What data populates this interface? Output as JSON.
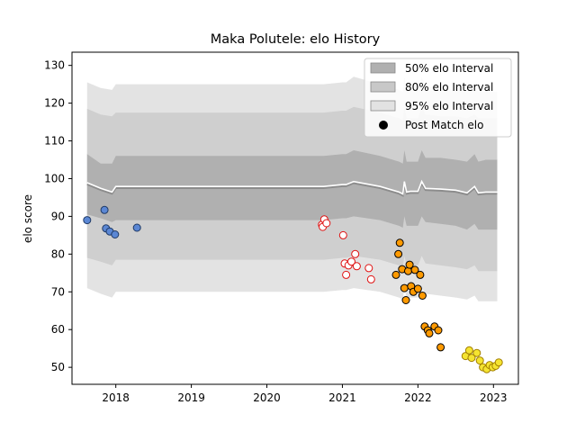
{
  "chart_data": {
    "type": "scatter",
    "title": "Maka Polutele: elo History",
    "xlabel": "",
    "ylabel": "elo score",
    "xlim": [
      2017.42,
      2023.33
    ],
    "ylim": [
      45.5,
      133.5
    ],
    "x_ticks": [
      2018,
      2019,
      2020,
      2021,
      2022,
      2023
    ],
    "y_ticks": [
      50,
      60,
      70,
      80,
      90,
      100,
      110,
      120,
      130
    ],
    "grid": false,
    "legend_position": "top-right",
    "legend": [
      {
        "label": "50% elo Interval",
        "kind": "band",
        "color": "#b0b0b0"
      },
      {
        "label": "80% elo Interval",
        "kind": "band",
        "color": "#c8c8c8"
      },
      {
        "label": "95% elo Interval",
        "kind": "band",
        "color": "#e2e2e2"
      },
      {
        "label": "Post Match elo",
        "kind": "marker",
        "color": "#000000"
      }
    ],
    "colors": {
      "band50": "#b0b0b0",
      "band80": "#cfcfcf",
      "band95": "#e3e3e3",
      "median_line": "#8c8c8c",
      "median_highlight": "#ffffff"
    },
    "intervals": {
      "x": [
        2017.62,
        2017.8,
        2017.95,
        2018.0,
        2018.5,
        2019.0,
        2020.0,
        2020.75,
        2021.0,
        2021.05,
        2021.15,
        2021.5,
        2021.75,
        2021.8,
        2021.82,
        2021.85,
        2021.9,
        2022.0,
        2022.05,
        2022.1,
        2022.3,
        2022.5,
        2022.65,
        2022.75,
        2022.8,
        2022.9,
        2023.05
      ],
      "median": [
        98.5,
        97.0,
        96.0,
        97.5,
        97.5,
        97.5,
        97.5,
        97.5,
        98.0,
        98.0,
        98.8,
        97.5,
        96.0,
        95.5,
        98.8,
        96.0,
        96.2,
        96.2,
        98.8,
        97.0,
        96.8,
        96.5,
        95.8,
        97.5,
        95.8,
        96.0,
        96.0
      ],
      "band50": [
        [
          90.5,
          106.5
        ],
        [
          89.5,
          104.0
        ],
        [
          88.5,
          104.0
        ],
        [
          89.0,
          106.0
        ],
        [
          89.0,
          106.0
        ],
        [
          89.0,
          106.0
        ],
        [
          89.0,
          106.0
        ],
        [
          89.0,
          106.0
        ],
        [
          89.5,
          106.5
        ],
        [
          89.5,
          106.5
        ],
        [
          90.0,
          107.5
        ],
        [
          89.0,
          106.0
        ],
        [
          87.5,
          104.5
        ],
        [
          87.0,
          104.0
        ],
        [
          90.0,
          107.5
        ],
        [
          87.5,
          104.5
        ],
        [
          87.5,
          104.5
        ],
        [
          87.5,
          104.5
        ],
        [
          90.0,
          107.5
        ],
        [
          88.5,
          105.5
        ],
        [
          88.0,
          105.5
        ],
        [
          87.5,
          105.0
        ],
        [
          86.5,
          104.5
        ],
        [
          88.0,
          106.5
        ],
        [
          86.5,
          104.5
        ],
        [
          86.5,
          105.0
        ],
        [
          86.5,
          105.0
        ]
      ],
      "band80": [
        [
          79.0,
          118.5
        ],
        [
          78.0,
          117.0
        ],
        [
          77.0,
          116.5
        ],
        [
          78.5,
          117.5
        ],
        [
          78.5,
          117.5
        ],
        [
          78.5,
          117.5
        ],
        [
          78.5,
          117.5
        ],
        [
          78.5,
          117.5
        ],
        [
          79.0,
          118.0
        ],
        [
          79.0,
          118.0
        ],
        [
          79.5,
          119.0
        ],
        [
          78.5,
          117.5
        ],
        [
          77.0,
          116.0
        ],
        [
          76.5,
          115.5
        ],
        [
          79.5,
          119.0
        ],
        [
          77.0,
          116.0
        ],
        [
          77.0,
          116.0
        ],
        [
          77.0,
          116.0
        ],
        [
          79.5,
          119.0
        ],
        [
          77.5,
          117.0
        ],
        [
          77.0,
          116.5
        ],
        [
          76.5,
          116.5
        ],
        [
          76.0,
          116.0
        ],
        [
          77.0,
          117.0
        ],
        [
          75.5,
          116.0
        ],
        [
          75.5,
          116.0
        ],
        [
          75.5,
          116.0
        ]
      ],
      "band95": [
        [
          71.0,
          125.5
        ],
        [
          69.5,
          124.0
        ],
        [
          68.5,
          123.5
        ],
        [
          70.0,
          125.0
        ],
        [
          70.0,
          125.0
        ],
        [
          70.0,
          125.0
        ],
        [
          70.0,
          125.0
        ],
        [
          70.0,
          125.0
        ],
        [
          70.5,
          125.5
        ],
        [
          70.5,
          125.5
        ],
        [
          71.0,
          127.0
        ],
        [
          70.0,
          125.0
        ],
        [
          68.5,
          123.5
        ],
        [
          68.0,
          123.0
        ],
        [
          71.0,
          127.0
        ],
        [
          68.5,
          123.5
        ],
        [
          68.5,
          123.5
        ],
        [
          68.5,
          123.5
        ],
        [
          71.0,
          127.0
        ],
        [
          69.5,
          124.5
        ],
        [
          69.0,
          124.0
        ],
        [
          68.5,
          123.5
        ],
        [
          68.0,
          123.0
        ],
        [
          69.0,
          124.5
        ],
        [
          67.5,
          123.0
        ],
        [
          67.5,
          123.0
        ],
        [
          67.5,
          123.0
        ]
      ]
    },
    "series": [
      {
        "fill": "#5b87d4",
        "edge": "#1f3a66",
        "x": [
          2017.62,
          2017.85,
          2017.87,
          2017.92,
          2017.99,
          2018.28
        ],
        "y": [
          89.0,
          91.7,
          86.8,
          86.0,
          85.2,
          87.0
        ]
      },
      {
        "fill": "#ffffff",
        "edge": "#e01010",
        "x": [
          2020.73,
          2020.74,
          2020.76,
          2020.79,
          2021.01,
          2021.03,
          2021.05,
          2021.08,
          2021.12,
          2021.17,
          2021.19,
          2021.35,
          2021.38
        ],
        "y": [
          87.8,
          87.2,
          89.2,
          88.2,
          85.0,
          77.5,
          74.5,
          77.0,
          78.0,
          80.0,
          76.8,
          76.3,
          73.3
        ]
      },
      {
        "fill": "#ff9a00",
        "edge": "#000000",
        "x": [
          2021.71,
          2021.74,
          2021.76,
          2021.79,
          2021.82,
          2021.84,
          2021.87,
          2021.89,
          2021.91,
          2021.94,
          2021.96,
          2022.0,
          2022.03,
          2022.06,
          2022.09,
          2022.13,
          2022.15,
          2022.22,
          2022.27,
          2022.3
        ],
        "y": [
          74.5,
          80.0,
          83.0,
          76.0,
          71.0,
          67.8,
          75.5,
          77.2,
          71.5,
          70.0,
          75.8,
          70.8,
          74.5,
          69.0,
          60.8,
          59.8,
          59.0,
          60.8,
          59.8,
          55.3
        ]
      },
      {
        "fill": "#f5e431",
        "edge": "#a27f00",
        "x": [
          2022.63,
          2022.68,
          2022.71,
          2022.78,
          2022.82,
          2022.86,
          2022.91,
          2022.95,
          2022.99,
          2023.03,
          2023.07
        ],
        "y": [
          53.0,
          54.5,
          52.5,
          53.8,
          51.8,
          50.0,
          49.5,
          50.6,
          50.0,
          50.4,
          51.3
        ]
      }
    ]
  }
}
